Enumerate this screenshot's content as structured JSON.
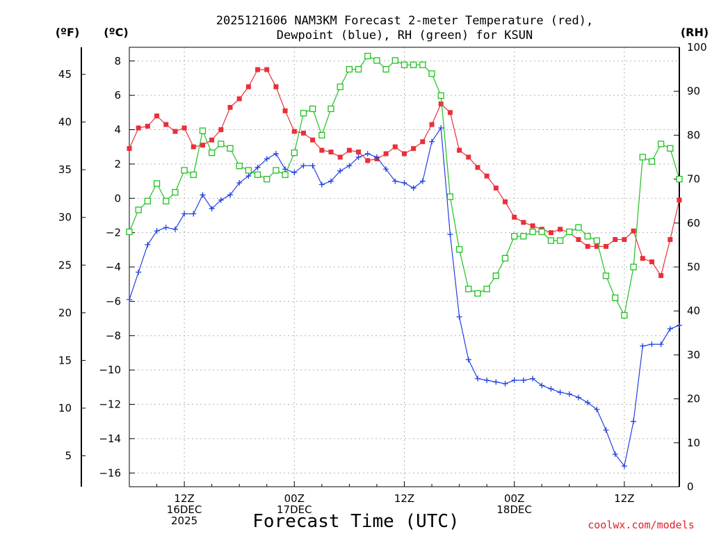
{
  "chart_data": {
    "type": "line",
    "title_line1": "2025121606 NAM3KM Forecast 2-meter Temperature (red),",
    "title_line2": "Dewpoint (blue), RH (green) for KSUN",
    "unit_f": "(ºF)",
    "unit_c": "(ºC)",
    "unit_rh": "(RH)",
    "xlabel": "Forecast Time (UTC)",
    "credit": "coolwx.com/models",
    "x_range_hours": [
      0,
      60
    ],
    "c_range": [
      -16.8,
      8.8
    ],
    "rh_range": [
      0,
      100
    ],
    "c_ticks": [
      "8",
      "6",
      "4",
      "2",
      "0",
      "−2",
      "−4",
      "−6",
      "−8",
      "−10",
      "−12",
      "−14",
      "−16"
    ],
    "c_tick_values": [
      8,
      6,
      4,
      2,
      0,
      -2,
      -4,
      -6,
      -8,
      -10,
      -12,
      -14,
      -16
    ],
    "f_ticks": [
      "45",
      "40",
      "35",
      "30",
      "25",
      "20",
      "15",
      "10",
      "5"
    ],
    "f_tick_values": [
      45,
      40,
      35,
      30,
      25,
      20,
      15,
      10,
      5
    ],
    "rh_ticks": [
      "100",
      "90",
      "80",
      "70",
      "60",
      "50",
      "40",
      "30",
      "20",
      "10",
      "0"
    ],
    "rh_tick_values": [
      100,
      90,
      80,
      70,
      60,
      50,
      40,
      30,
      20,
      10,
      0
    ],
    "x_tick_hours": [
      6,
      18,
      30,
      42,
      54
    ],
    "x_tick_labels": [
      [
        "12Z",
        "16DEC",
        "2025"
      ],
      [
        "00Z",
        "17DEC"
      ],
      [
        "12Z"
      ],
      [
        "00Z",
        "18DEC"
      ],
      [
        "12Z"
      ]
    ],
    "series": [
      {
        "name": "Temperature",
        "color": "#e8303a",
        "marker": "filled-square",
        "axis": "C",
        "values": [
          2.9,
          4.1,
          4.2,
          4.8,
          4.3,
          3.9,
          4.1,
          3.0,
          3.1,
          3.4,
          4.0,
          5.3,
          5.8,
          6.5,
          7.5,
          7.5,
          6.5,
          5.1,
          3.9,
          3.8,
          3.4,
          2.8,
          2.7,
          2.4,
          2.8,
          2.7,
          2.2,
          2.3,
          2.6,
          3.0,
          2.6,
          2.9,
          3.3,
          4.3,
          5.5,
          5.0,
          2.8,
          2.4,
          1.8,
          1.3,
          0.6,
          -0.2,
          -1.1,
          -1.4,
          -1.6,
          -1.8,
          -2.0,
          -1.8,
          -2.0,
          -2.4,
          -2.8,
          -2.8,
          -2.8,
          -2.4,
          -2.4,
          -1.9,
          -3.5,
          -3.7,
          -4.5,
          -2.4,
          -0.1
        ]
      },
      {
        "name": "Dewpoint",
        "color": "#2040e0",
        "marker": "plus",
        "axis": "C",
        "values": [
          -5.9,
          -4.3,
          -2.7,
          -1.9,
          -1.7,
          -1.8,
          -0.9,
          -0.9,
          0.2,
          -0.6,
          -0.1,
          0.2,
          0.9,
          1.3,
          1.8,
          2.3,
          2.6,
          1.7,
          1.5,
          1.9,
          1.9,
          0.8,
          1.0,
          1.6,
          1.9,
          2.4,
          2.6,
          2.4,
          1.7,
          1.0,
          0.9,
          0.6,
          1.0,
          3.3,
          4.1,
          -2.1,
          -6.9,
          -9.4,
          -10.5,
          -10.6,
          -10.7,
          -10.8,
          -10.6,
          -10.6,
          -10.5,
          -10.9,
          -11.1,
          -11.3,
          -11.4,
          -11.6,
          -11.9,
          -12.3,
          -13.5,
          -14.9,
          -15.6,
          -13.0,
          -8.6,
          -8.5,
          -8.5,
          -7.6,
          -7.4
        ]
      },
      {
        "name": "RH",
        "color": "#20c020",
        "marker": "open-square",
        "axis": "RH",
        "values": [
          58,
          63,
          65,
          69,
          65,
          67,
          72,
          71,
          81,
          76,
          78,
          77,
          73,
          72,
          71,
          70,
          72,
          71,
          76,
          85,
          86,
          80,
          86,
          91,
          95,
          95,
          98,
          97,
          95,
          97,
          96,
          96,
          96,
          94,
          89,
          66,
          54,
          45,
          44,
          45,
          48,
          52,
          57,
          57,
          58,
          58,
          56,
          56,
          58,
          59,
          57,
          56,
          48,
          43,
          39,
          50,
          75,
          74,
          78,
          77,
          70
        ]
      }
    ]
  }
}
